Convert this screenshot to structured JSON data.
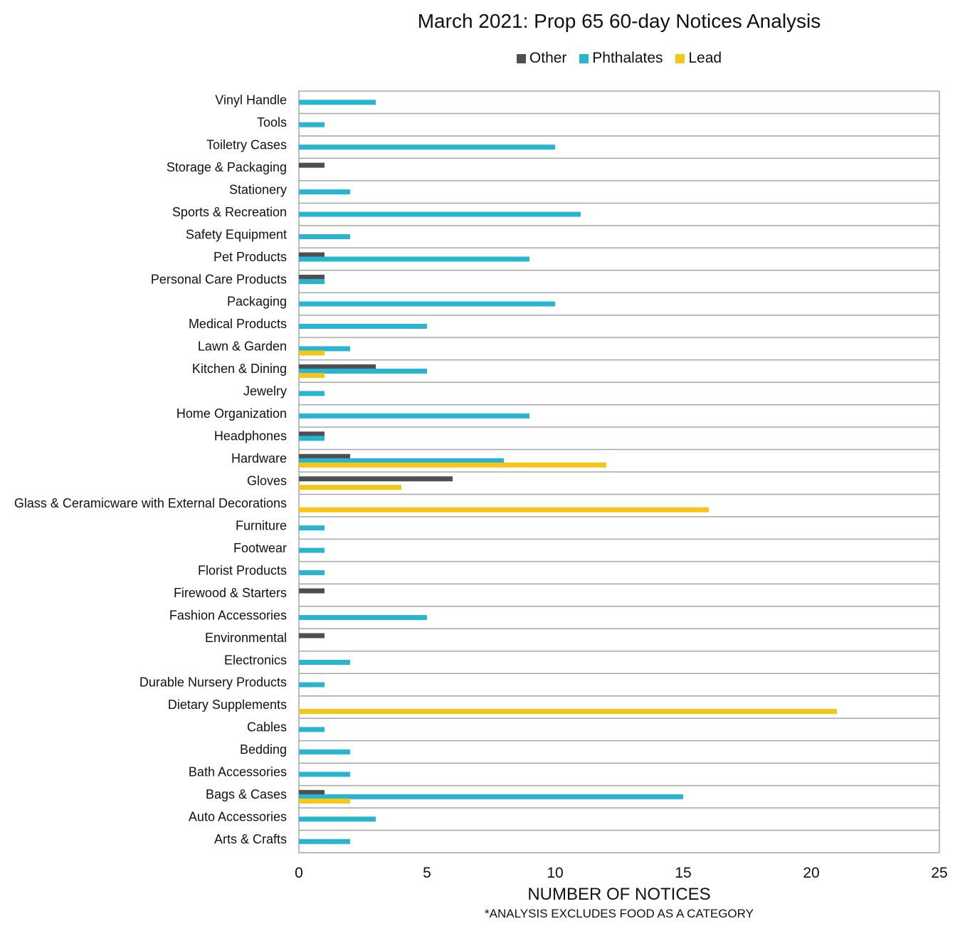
{
  "chart_data": {
    "type": "bar",
    "orientation": "horizontal",
    "title": "March 2021: Prop 65 60-day Notices Analysis",
    "xlabel": "NUMBER OF NOTICES",
    "note": "*ANALYSIS EXCLUDES FOOD AS A CATEGORY",
    "xlim": [
      0,
      25
    ],
    "xticks": [
      0,
      5,
      10,
      15,
      20,
      25
    ],
    "grid": "horizontal",
    "legend_position": "top",
    "categories": [
      "Vinyl Handle",
      "Tools",
      "Toiletry Cases",
      "Storage & Packaging",
      "Stationery",
      "Sports & Recreation",
      "Safety Equipment",
      "Pet Products",
      "Personal Care Products",
      "Packaging",
      "Medical Products",
      "Lawn & Garden",
      "Kitchen & Dining",
      "Jewelry",
      "Home Organization",
      "Headphones",
      "Hardware",
      "Gloves",
      "Glass & Ceramicware with External Decorations",
      "Furniture",
      "Footwear",
      "Florist Products",
      "Firewood & Starters",
      "Fashion Accessories",
      "Environmental",
      "Electronics",
      "Durable Nursery Products",
      "Dietary Supplements",
      "Cables",
      "Bedding",
      "Bath Accessories",
      "Bags & Cases",
      "Auto Accessories",
      "Arts & Crafts"
    ],
    "series": [
      {
        "name": "Other",
        "color": "#4d4f53",
        "values": [
          0,
          0,
          0,
          1,
          0,
          0,
          0,
          1,
          1,
          0,
          0,
          0,
          3,
          0,
          0,
          1,
          2,
          6,
          0,
          0,
          0,
          0,
          1,
          0,
          1,
          0,
          0,
          0,
          0,
          0,
          0,
          1,
          0,
          0
        ]
      },
      {
        "name": "Phthalates",
        "color": "#29b5d1",
        "values": [
          3,
          1,
          10,
          0,
          2,
          11,
          2,
          9,
          1,
          10,
          5,
          2,
          5,
          1,
          9,
          1,
          8,
          0,
          0,
          1,
          1,
          1,
          0,
          5,
          0,
          2,
          1,
          0,
          1,
          2,
          2,
          15,
          3,
          2
        ]
      },
      {
        "name": "Lead",
        "color": "#f5c518",
        "values": [
          0,
          0,
          0,
          0,
          0,
          0,
          0,
          0,
          0,
          0,
          0,
          1,
          1,
          0,
          0,
          0,
          12,
          4,
          16,
          0,
          0,
          0,
          0,
          0,
          0,
          0,
          0,
          21,
          0,
          0,
          0,
          2,
          0,
          0
        ]
      }
    ]
  }
}
